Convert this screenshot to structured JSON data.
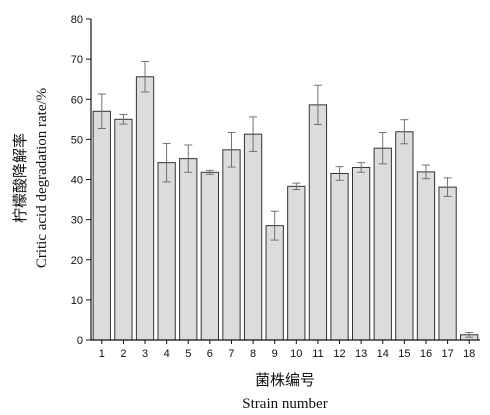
{
  "chart_data": {
    "type": "bar",
    "categories": [
      "1",
      "2",
      "3",
      "4",
      "5",
      "6",
      "7",
      "8",
      "9",
      "10",
      "11",
      "12",
      "13",
      "14",
      "15",
      "16",
      "17",
      "18"
    ],
    "values": [
      57.0,
      55.0,
      65.6,
      44.2,
      45.2,
      41.8,
      47.4,
      51.3,
      28.5,
      38.3,
      58.6,
      41.5,
      43.0,
      47.8,
      51.9,
      41.9,
      38.1,
      1.3
    ],
    "errors": [
      4.3,
      1.2,
      3.8,
      4.8,
      3.4,
      0.5,
      4.3,
      4.3,
      3.6,
      0.8,
      4.9,
      1.7,
      1.2,
      3.9,
      3.0,
      1.7,
      2.3,
      0.6
    ],
    "xlabel_cn": "菌株编号",
    "xlabel": "Strain number",
    "ylabel_cn": "柠檬酸降解率",
    "ylabel": "Critic acid degradation rate/%",
    "ylim": [
      0,
      80
    ],
    "yticks": [
      0,
      10,
      20,
      30,
      40,
      50,
      60,
      70,
      80
    ],
    "grid": false,
    "bar_color": "#dcdcdc",
    "bar_edge_color": "#333333"
  }
}
